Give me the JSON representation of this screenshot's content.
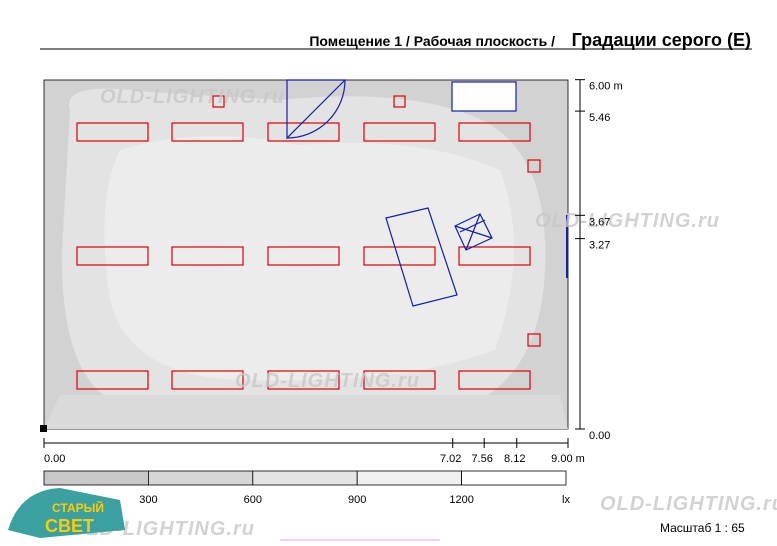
{
  "header": {
    "prefix": "Помещение 1 / Рабочая плоскость /",
    "title": "Градации серого (E)"
  },
  "plan": {
    "y_axis": {
      "ticks": [
        {
          "value": 6,
          "label": "6.00 m"
        },
        {
          "value": 5.46,
          "label": "5.46"
        },
        {
          "value": 3.67,
          "label": "3.67"
        },
        {
          "value": 3.27,
          "label": "3.27"
        },
        {
          "value": 0,
          "label": "0.00"
        }
      ]
    },
    "x_axis": {
      "ticks": [
        {
          "value": 0,
          "label": "0.00"
        },
        {
          "value": 7.02,
          "label": "7.02"
        },
        {
          "value": 7.56,
          "label": "7.56"
        },
        {
          "value": 8.12,
          "label": "8.12"
        },
        {
          "value": 9,
          "label": "9.00 m"
        }
      ]
    }
  },
  "legend": {
    "levels": [
      300,
      600,
      900,
      1200
    ],
    "unit": "lx"
  },
  "footer": {
    "scale": "Масштаб 1 : 65"
  },
  "watermark": "OLD-LIGHTING.ru",
  "logo": {
    "top": "СТАРЫЙ",
    "bottom": "СВЕТ"
  }
}
